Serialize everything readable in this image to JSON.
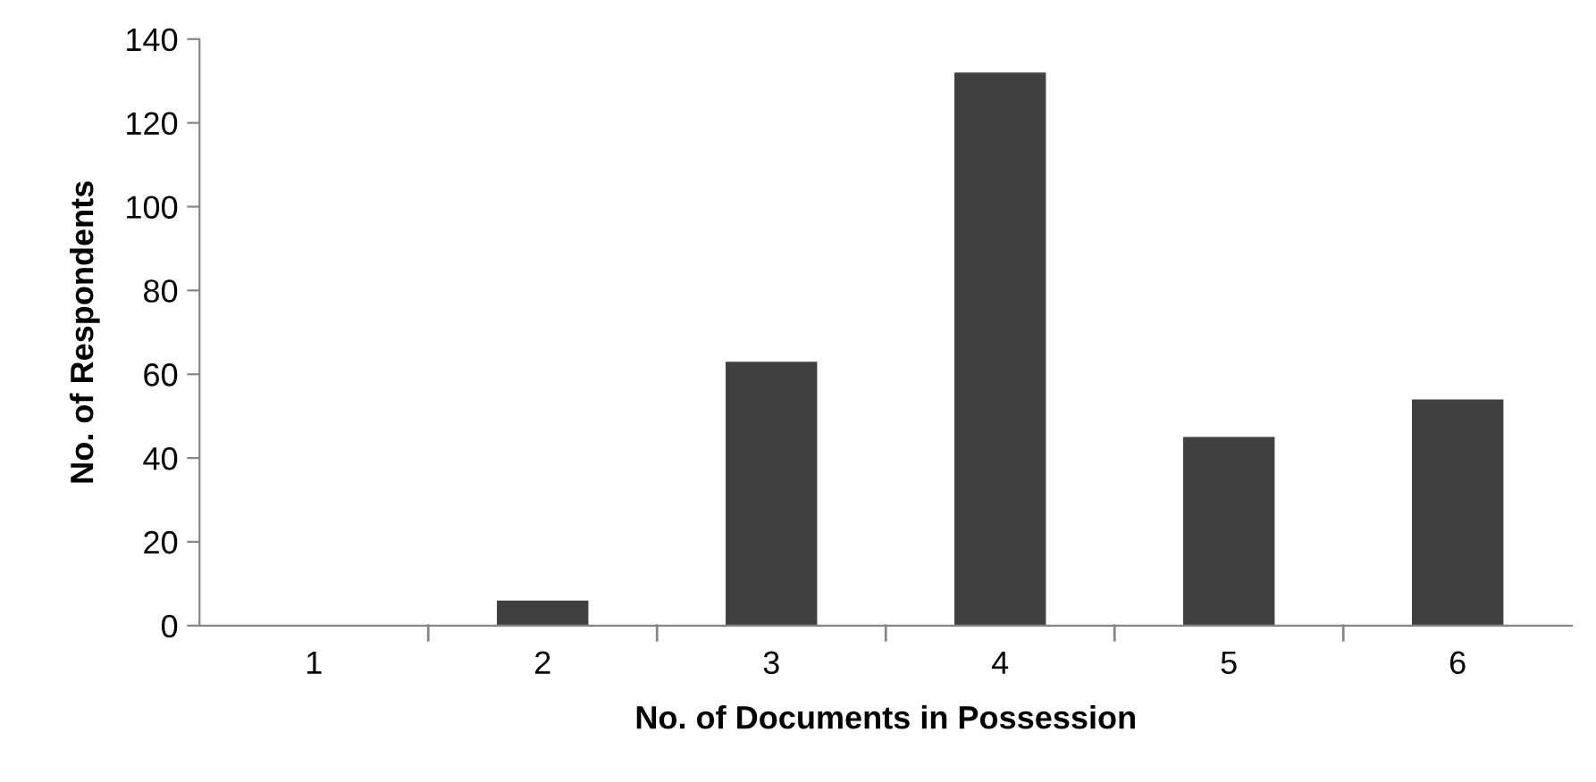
{
  "chart_data": {
    "type": "bar",
    "xlabel": "No. of Documents in Possession",
    "ylabel": "No. of Respondents",
    "categories": [
      "1",
      "2",
      "3",
      "4",
      "5",
      "6"
    ],
    "values": [
      0,
      6,
      63,
      132,
      45,
      54
    ],
    "color": "#404040",
    "ylim": [
      0,
      140
    ],
    "yticks": [
      0,
      20,
      40,
      60,
      80,
      100,
      120,
      140
    ],
    "grid": false,
    "legend": false
  }
}
